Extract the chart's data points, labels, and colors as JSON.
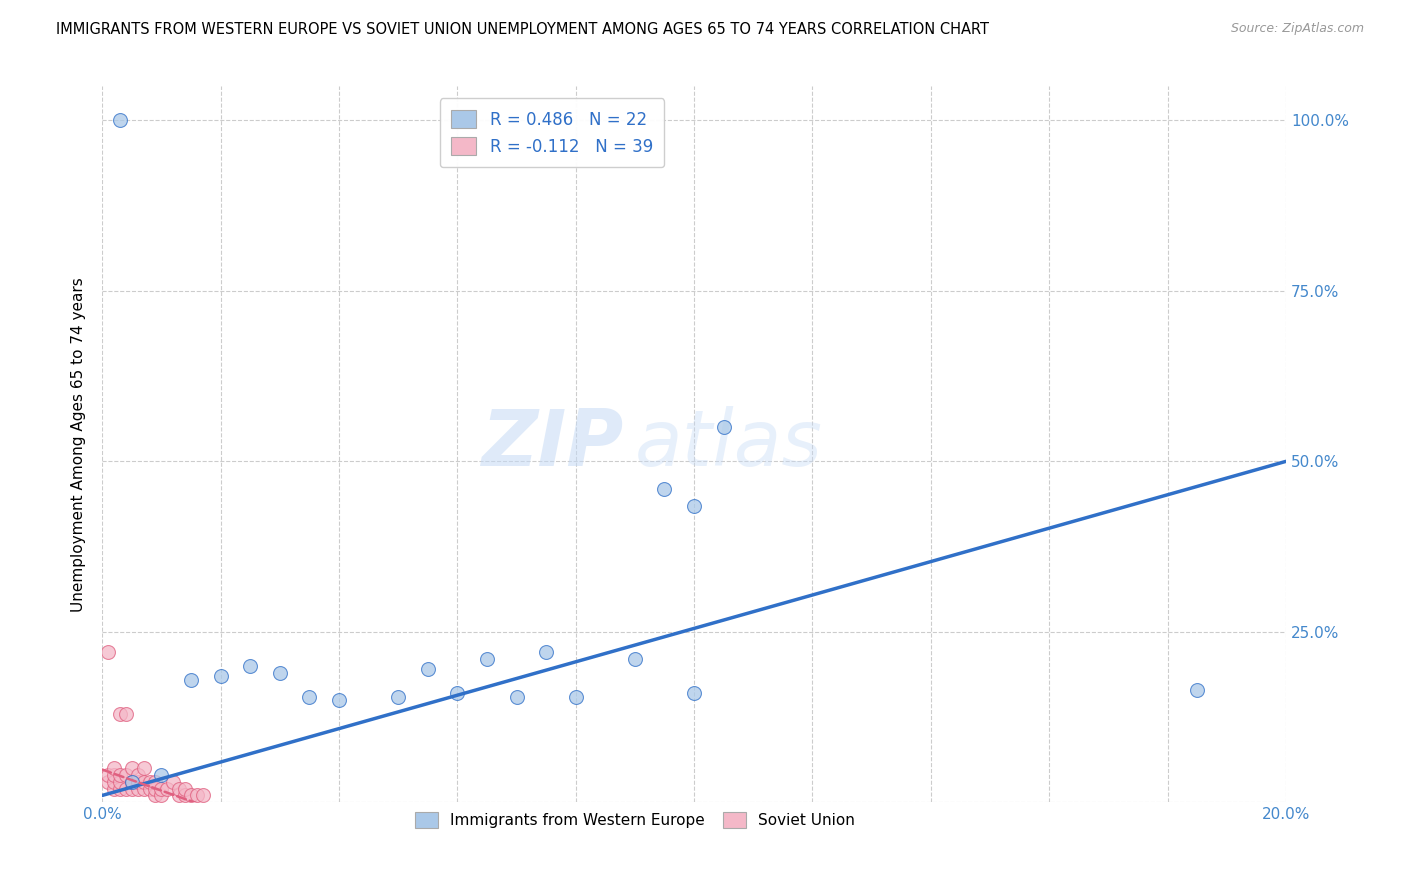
{
  "title": "IMMIGRANTS FROM WESTERN EUROPE VS SOVIET UNION UNEMPLOYMENT AMONG AGES 65 TO 74 YEARS CORRELATION CHART",
  "source": "Source: ZipAtlas.com",
  "ylabel": "Unemployment Among Ages 65 to 74 years",
  "xlim": [
    0.0,
    0.2
  ],
  "ylim": [
    0.0,
    1.05
  ],
  "xticks": [
    0.0,
    0.02,
    0.04,
    0.06,
    0.08,
    0.1,
    0.12,
    0.14,
    0.16,
    0.18,
    0.2
  ],
  "xticklabels": [
    "0.0%",
    "",
    "",
    "",
    "",
    "",
    "",
    "",
    "",
    "",
    "20.0%"
  ],
  "yticks": [
    0.0,
    0.25,
    0.5,
    0.75,
    1.0
  ],
  "yticklabels": [
    "",
    "25.0%",
    "50.0%",
    "75.0%",
    "100.0%"
  ],
  "blue_R": 0.486,
  "blue_N": 22,
  "pink_R": -0.112,
  "pink_N": 39,
  "blue_color": "#aac8e8",
  "pink_color": "#f4b8c8",
  "blue_line_color": "#3070c8",
  "pink_line_color": "#e06080",
  "watermark_zip": "ZIP",
  "watermark_atlas": "atlas",
  "blue_points_x": [
    0.005,
    0.01,
    0.015,
    0.02,
    0.025,
    0.03,
    0.035,
    0.04,
    0.05,
    0.055,
    0.06,
    0.065,
    0.07,
    0.075,
    0.08,
    0.09,
    0.095,
    0.1,
    0.1,
    0.105,
    0.185,
    0.003
  ],
  "blue_points_y": [
    0.03,
    0.04,
    0.18,
    0.185,
    0.2,
    0.19,
    0.155,
    0.15,
    0.155,
    0.195,
    0.16,
    0.21,
    0.155,
    0.22,
    0.155,
    0.21,
    0.46,
    0.435,
    0.16,
    0.55,
    0.165,
    1.0
  ],
  "pink_points_x": [
    0.001,
    0.001,
    0.001,
    0.002,
    0.002,
    0.002,
    0.002,
    0.003,
    0.003,
    0.003,
    0.003,
    0.004,
    0.004,
    0.004,
    0.005,
    0.005,
    0.005,
    0.006,
    0.006,
    0.006,
    0.007,
    0.007,
    0.007,
    0.008,
    0.008,
    0.009,
    0.009,
    0.009,
    0.01,
    0.01,
    0.011,
    0.012,
    0.013,
    0.013,
    0.014,
    0.014,
    0.015,
    0.016,
    0.017
  ],
  "pink_points_y": [
    0.22,
    0.03,
    0.04,
    0.02,
    0.03,
    0.04,
    0.05,
    0.02,
    0.03,
    0.04,
    0.13,
    0.02,
    0.13,
    0.04,
    0.02,
    0.03,
    0.05,
    0.02,
    0.03,
    0.04,
    0.02,
    0.03,
    0.05,
    0.02,
    0.03,
    0.01,
    0.02,
    0.03,
    0.01,
    0.02,
    0.02,
    0.03,
    0.01,
    0.02,
    0.01,
    0.02,
    0.01,
    0.01,
    0.01
  ],
  "blue_trend_x": [
    0.0,
    0.2
  ],
  "blue_trend_y": [
    0.01,
    0.5
  ],
  "pink_trend_x": [
    0.0,
    0.022
  ],
  "pink_trend_y": [
    0.048,
    -0.02
  ],
  "grid_color": "#cccccc",
  "grid_style": "--",
  "title_fontsize": 10.5,
  "axis_tick_color": "#4488cc",
  "marker_size": 100,
  "legend_blue_label": "R = 0.486   N = 22",
  "legend_pink_label": "R = -0.112   N = 39",
  "bottom_legend_blue": "Immigrants from Western Europe",
  "bottom_legend_pink": "Soviet Union"
}
